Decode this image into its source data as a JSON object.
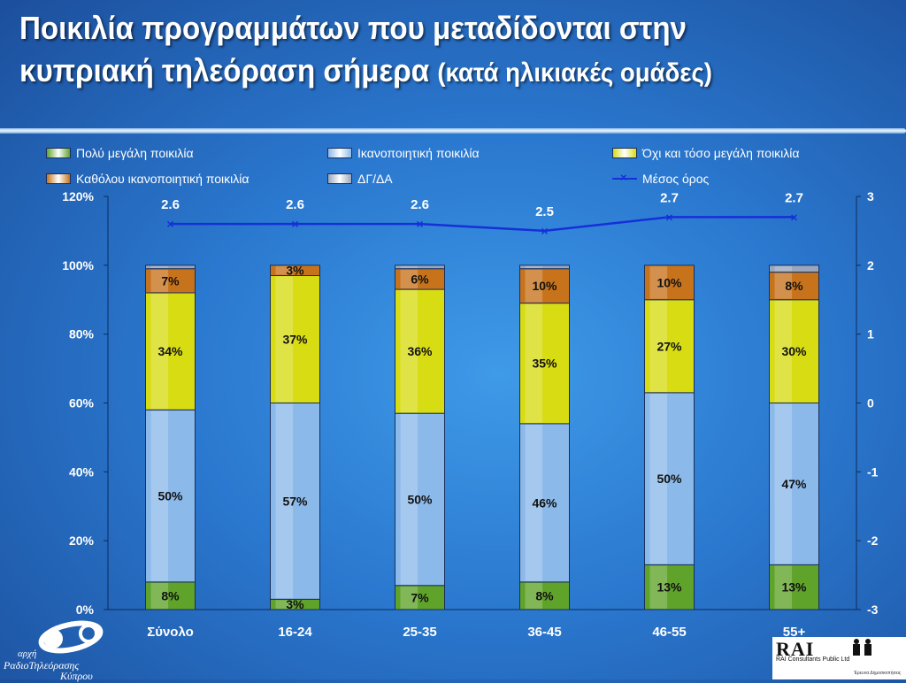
{
  "title": {
    "line1": "Ποικιλία προγραμμάτων που μεταδίδονται στην",
    "line2_main": "κυπριακή τηλεόραση σήμερα",
    "line2_sub": "(κατά ηλικιακές ομάδες)"
  },
  "legend": [
    {
      "label": "Πολύ μεγάλη ποικιλία",
      "color": "#5fa32a",
      "kind": "box"
    },
    {
      "label": "Ικανοποιητική ποικιλία",
      "color": "#8bb9ea",
      "kind": "box"
    },
    {
      "label": "Όχι και τόσο μεγάλη ποικιλία",
      "color": "#d8dc12",
      "kind": "box"
    },
    {
      "label": "Καθόλου ικανοποιητική ποικιλία",
      "color": "#c7731c",
      "kind": "box"
    },
    {
      "label": "ΔΓ/ΔΑ",
      "color": "#98a7bd",
      "kind": "box"
    },
    {
      "label": "Μέσος όρος",
      "color": "#1530d8",
      "kind": "line"
    }
  ],
  "chart_data": {
    "type": "bar",
    "stacked": true,
    "categories": [
      "Σύνολο",
      "16-24",
      "25-35",
      "36-45",
      "46-55",
      "55+"
    ],
    "series": [
      {
        "name": "Πολύ μεγάλη ποικιλία",
        "color": "#5fa32a",
        "values": [
          8,
          3,
          7,
          8,
          13,
          13
        ],
        "labels": [
          "8%",
          "3%",
          "7%",
          "8%",
          "13%",
          "13%"
        ]
      },
      {
        "name": "Ικανοποιητική ποικιλία",
        "color": "#8bb9ea",
        "values": [
          50,
          57,
          50,
          46,
          50,
          47
        ],
        "labels": [
          "50%",
          "57%",
          "50%",
          "46%",
          "50%",
          "47%"
        ]
      },
      {
        "name": "Όχι και τόσο μεγάλη ποικιλία",
        "color": "#d8dc12",
        "values": [
          34,
          37,
          36,
          35,
          27,
          30
        ],
        "labels": [
          "34%",
          "37%",
          "36%",
          "35%",
          "27%",
          "30%"
        ]
      },
      {
        "name": "Καθόλου ικανοποιητική ποικιλία",
        "color": "#c7731c",
        "values": [
          7,
          3,
          6,
          10,
          10,
          8
        ],
        "labels": [
          "7%",
          "3%",
          "6%",
          "10%",
          "10%",
          "8%"
        ]
      },
      {
        "name": "ΔΓ/ΔΑ",
        "color": "#98a7bd",
        "values": [
          1,
          0,
          1,
          1,
          0,
          2
        ],
        "labels": [
          "",
          "",
          "",
          "",
          "",
          ""
        ]
      }
    ],
    "line_series": {
      "name": "Μέσος όρος",
      "color": "#1530d8",
      "axis": "right",
      "values": [
        2.6,
        2.6,
        2.6,
        2.5,
        2.7,
        2.7
      ],
      "labels": [
        "2.6",
        "2.6",
        "2.6",
        "2.5",
        "2.7",
        "2.7"
      ]
    },
    "y_left": {
      "min": 0,
      "max": 120,
      "step": 20,
      "tick_labels": [
        "0%",
        "20%",
        "40%",
        "60%",
        "80%",
        "100%",
        "120%"
      ]
    },
    "y_right": {
      "min": -3,
      "max": 3,
      "step": 1,
      "tick_labels": [
        "-3",
        "-2",
        "-1",
        "0",
        "1",
        "2",
        "3"
      ]
    },
    "grid": false,
    "legend_position": "top"
  },
  "logos": {
    "left": {
      "line1": "αρχή",
      "line2": "ΡαδιοΤηλεόρασης",
      "line3": "Κύπρου"
    },
    "right": {
      "brand": "RAI",
      "company": "RAI Consultants Public Ltd",
      "tagline": "Έρευνα Δημοσκοπήσεις"
    }
  }
}
